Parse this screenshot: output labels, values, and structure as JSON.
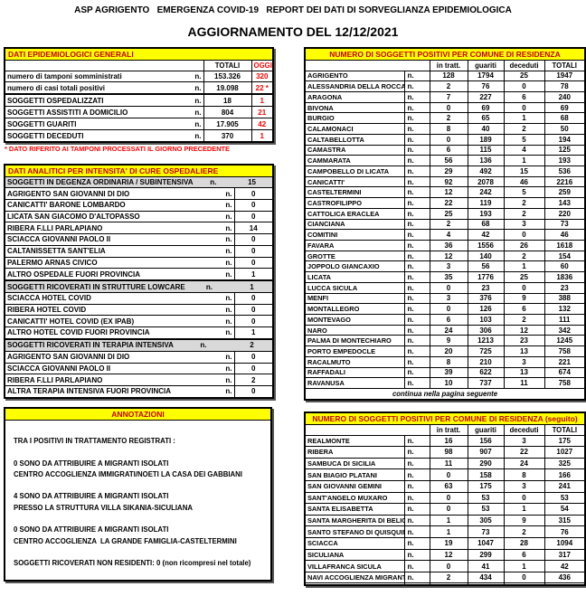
{
  "header": {
    "title": "ASP AGRIGENTO   EMERGENZA COVID-19   REPORT DEI DATI DI SORVEGLIANZA EPIDEMIOLOGICA",
    "update": "AGGIORNAMENTO DEL 12/12/2021"
  },
  "colors": {
    "header_yellow": "#ffff00",
    "title_red": "#c00000",
    "value_red": "#ff0000",
    "section_grey": "#d9d9d9"
  },
  "general": {
    "title": "DATI EPIDEMIOLOGICI GENERALI",
    "n_label": "n.",
    "columns": [
      "TOTALI",
      "OGGI"
    ],
    "rows": [
      {
        "label": "numero di tamponi somministrati",
        "totali": "153.326",
        "oggi": "320"
      },
      {
        "label": "numero di casi totali positivi",
        "totali": "19.098",
        "oggi": "22 *"
      },
      {
        "blank": true
      },
      {
        "label": "SOGGETTI OSPEDALIZZATI",
        "totali": "18",
        "oggi": "1"
      },
      {
        "label": "SOGGETTI ASSISTITI A DOMICILIO",
        "totali": "804",
        "oggi": "21"
      },
      {
        "label": "SOGGETTI GUARITI",
        "totali": "17.905",
        "oggi": "42"
      },
      {
        "label": "SOGGETTI DECEDUTI",
        "totali": "370",
        "oggi": "1"
      }
    ],
    "footnote": "* DATO RIFERITO AI TAMPONI PROCESSATI IL GIORNO PRECEDENTE"
  },
  "hospital": {
    "title": "DATI ANALITICI PER INTENSITA' DI CURE OSPEDALIERE",
    "n_label": "n.",
    "sections": [
      {
        "header": "SOGGETTI IN DEGENZA ORDINARIA / SUBINTENSIVA",
        "value": "15",
        "rows": [
          [
            "AGRIGENTO SAN GIOVANNI DI DIO",
            "0"
          ],
          [
            "CANICATTI' BARONE LOMBARDO",
            "0"
          ],
          [
            "LICATA SAN GIACOMO D'ALTOPASSO",
            "0"
          ],
          [
            "RIBERA F.LLI PARLAPIANO",
            "14"
          ],
          [
            "SCIACCA GIOVANNI PAOLO II",
            "0"
          ],
          [
            "CALTANISSETTA SANT'ELIA",
            "0"
          ],
          [
            "PALERMO ARNAS CIVICO",
            "0"
          ],
          [
            "ALTRO OSPEDALE FUORI PROVINCIA",
            "1"
          ]
        ]
      },
      {
        "header": "SOGGETTI RICOVERATI IN STRUTTURE LOWCARE",
        "value": "1",
        "rows": [
          [
            "SCIACCA HOTEL COVID",
            "0"
          ],
          [
            "RIBERA HOTEL COVID",
            "0"
          ],
          [
            "CANICATTI' HOTEL COVID (EX IPAB)",
            "0"
          ],
          [
            "ALTRO HOTEL COVID FUORI PROVINCIA",
            "1"
          ]
        ]
      },
      {
        "header": "SOGGETTI RICOVERATI IN TERAPIA INTENSIVA",
        "value": "2",
        "rows": [
          [
            "AGRIGENTO SAN GIOVANNI DI DIO",
            "0"
          ],
          [
            "SCIACCA GIOVANNI PAOLO II",
            "0"
          ],
          [
            "RIBERA F.LLI PARLAPIANO",
            "2"
          ],
          [
            "ALTRA TERAPIA INTENSIVA FUORI PROVINCIA",
            "0"
          ]
        ]
      }
    ]
  },
  "annotations": {
    "title": "ANNOTAZIONI",
    "lines": [
      "TRA I POSITIVI IN TRATTAMENTO REGISTRATI :",
      "",
      "0 SONO DA ATTRIBUIRE A MIGRANTI ISOLATI",
      "CENTRO ACCOGLIENZA IMMIGRATI/NOETI LA CASA DEI GABBIANI",
      "",
      "4 SONO DA ATTRIBUIRE A MIGRANTI ISOLATI",
      "PRESSO LA STRUTTURA VILLA SIKANIA-SICULIANA",
      "",
      "0 SONO DA ATTRIBUIRE A MIGRANTI ISOLATI",
      "CENTRO ACCOGLIENZA  LA GRANDE FAMIGLIA-CASTELTERMINI",
      "",
      "SOGGETTI RICOVERATI NON RESIDENTI: 0 (non ricompresi nel totale)"
    ]
  },
  "comuni1": {
    "title": "NUMERO DI SOGGETTI POSITIVI PER COMUNE DI RESIDENZA",
    "n_label": "n.",
    "columns": [
      "in tratt.",
      "guariti",
      "deceduti",
      "TOTALI"
    ],
    "rows": [
      [
        "AGRIGENTO",
        "128",
        "1794",
        "25",
        "1947"
      ],
      [
        "ALESSANDRIA DELLA ROCCA",
        "2",
        "76",
        "0",
        "78"
      ],
      [
        "ARAGONA",
        "7",
        "227",
        "6",
        "240"
      ],
      [
        "BIVONA",
        "0",
        "69",
        "0",
        "69"
      ],
      [
        "BURGIO",
        "2",
        "65",
        "1",
        "68"
      ],
      [
        "CALAMONACI",
        "8",
        "40",
        "2",
        "50"
      ],
      [
        "CALTABELLOTTA",
        "0",
        "189",
        "5",
        "194"
      ],
      [
        "CAMASTRA",
        "6",
        "115",
        "4",
        "125"
      ],
      [
        "CAMMARATA",
        "56",
        "136",
        "1",
        "193"
      ],
      [
        "CAMPOBELLO DI LICATA",
        "29",
        "492",
        "15",
        "536"
      ],
      [
        "CANICATTI'",
        "92",
        "2078",
        "46",
        "2216"
      ],
      [
        "CASTELTERMINI",
        "12",
        "242",
        "5",
        "259"
      ],
      [
        "CASTROFILIPPO",
        "22",
        "119",
        "2",
        "143"
      ],
      [
        "CATTOLICA ERACLEA",
        "25",
        "193",
        "2",
        "220"
      ],
      [
        "CIANCIANA",
        "2",
        "68",
        "3",
        "73"
      ],
      [
        "COMITINI",
        "4",
        "42",
        "0",
        "46"
      ],
      [
        "FAVARA",
        "36",
        "1556",
        "26",
        "1618"
      ],
      [
        "GROTTE",
        "12",
        "140",
        "2",
        "154"
      ],
      [
        "JOPPOLO GIANCAXIO",
        "3",
        "56",
        "1",
        "60"
      ],
      [
        "LICATA",
        "35",
        "1776",
        "25",
        "1836"
      ],
      [
        "LUCCA SICULA",
        "0",
        "23",
        "0",
        "23"
      ],
      [
        "MENFI",
        "3",
        "376",
        "9",
        "388"
      ],
      [
        "MONTALLEGRO",
        "0",
        "126",
        "6",
        "132"
      ],
      [
        "MONTEVAGO",
        "6",
        "103",
        "2",
        "111"
      ],
      [
        "NARO",
        "24",
        "306",
        "12",
        "342"
      ],
      [
        "PALMA DI MONTECHIARO",
        "9",
        "1213",
        "23",
        "1245"
      ],
      [
        "PORTO EMPEDOCLE",
        "20",
        "725",
        "13",
        "758"
      ],
      [
        "RACALMUTO",
        "8",
        "210",
        "3",
        "221"
      ],
      [
        "RAFFADALI",
        "39",
        "622",
        "13",
        "674"
      ],
      [
        "RAVANUSA",
        "10",
        "737",
        "11",
        "758"
      ]
    ],
    "footer": "continua nella pagina seguente"
  },
  "comuni2": {
    "title": "NUMERO DI SOGGETTI POSITIVI PER COMUNE DI RESIDENZA (seguito)",
    "n_label": "n.",
    "columns": [
      "in tratt.",
      "guariti",
      "deceduti",
      "TOTALI"
    ],
    "rows": [
      [
        "REALMONTE",
        "16",
        "156",
        "3",
        "175"
      ],
      [
        "RIBERA",
        "98",
        "907",
        "22",
        "1027"
      ],
      [
        "SAMBUCA DI SICILIA",
        "11",
        "290",
        "24",
        "325"
      ],
      [
        "SAN BIAGIO PLATANI",
        "0",
        "158",
        "8",
        "166"
      ],
      [
        "SAN GIOVANNI GEMINI",
        "63",
        "175",
        "3",
        "241"
      ],
      [
        "SANT'ANGELO MUXARO",
        "0",
        "53",
        "0",
        "53"
      ],
      [
        "SANTA ELISABETTA",
        "0",
        "53",
        "1",
        "54"
      ],
      [
        "SANTA MARGHERITA DI BELICE",
        "1",
        "305",
        "9",
        "315"
      ],
      [
        "SANTO STEFANO DI QUISQUINA",
        "1",
        "73",
        "2",
        "76"
      ],
      [
        "SCIACCA",
        "19",
        "1047",
        "28",
        "1094"
      ],
      [
        "SICULIANA",
        "12",
        "299",
        "6",
        "317"
      ],
      [
        "VILLAFRANCA SICULA",
        "0",
        "41",
        "1",
        "42"
      ],
      [
        "NAVI ACCOGLIENZA MIGRANTI",
        "2",
        "434",
        "0",
        "436"
      ]
    ],
    "blank_last_row": true
  }
}
